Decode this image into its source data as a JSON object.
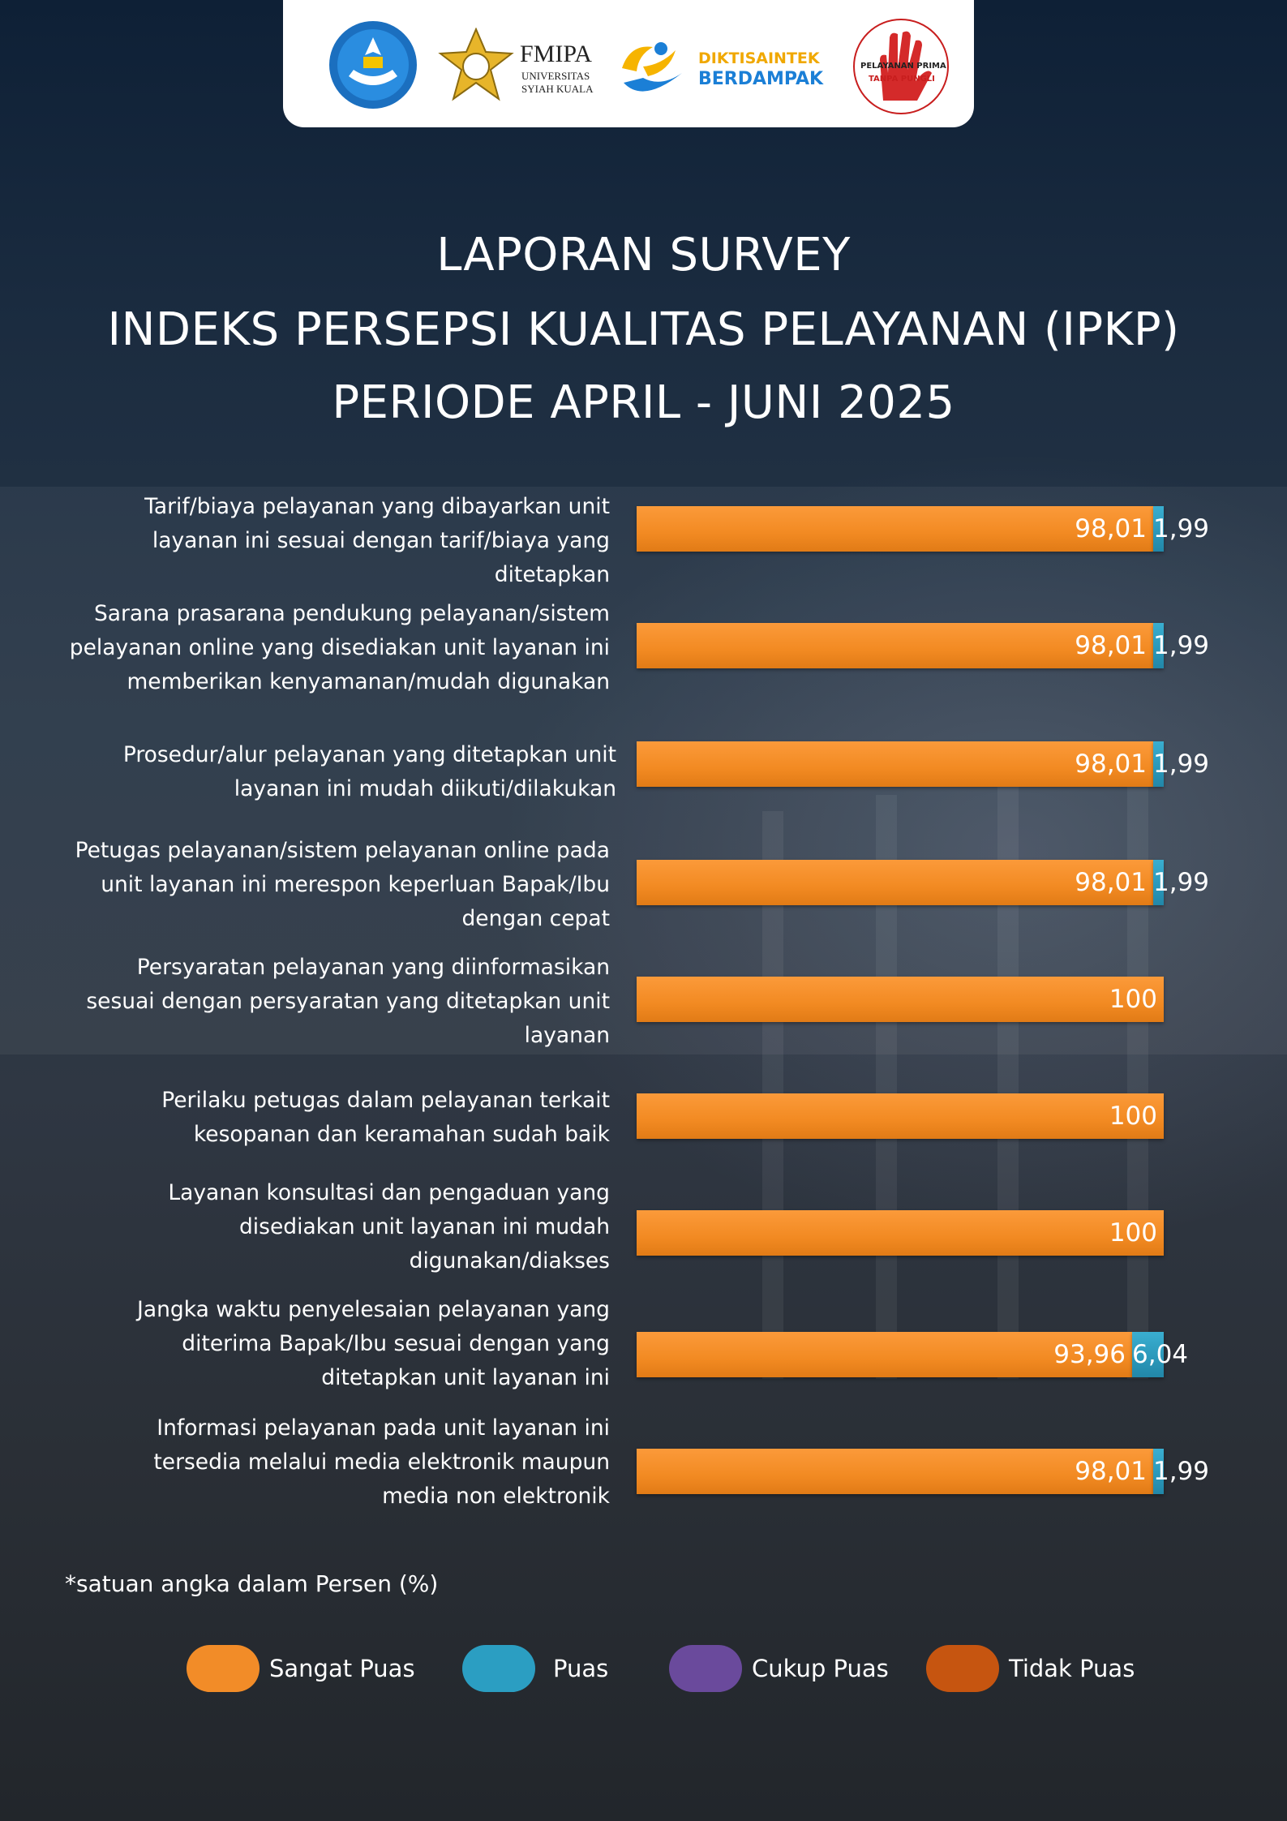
{
  "header": {
    "logos": [
      {
        "name": "tut-wuri-handayani-logo",
        "text": "TUT WURI HANDAYANI"
      },
      {
        "name": "fmipa-usk-logo",
        "text": "FMIPA",
        "sub1": "UNIVERSITAS",
        "sub2": "SYIAH KUALA"
      },
      {
        "name": "diktisaintek-berdampak-logo",
        "text1": "DIKTISAINTEK",
        "text2": "BERDAMPAK"
      },
      {
        "name": "zona-integritas-pelayanan-prima-logo",
        "text1": "PELAYANAN PRIMA",
        "text2": "TANPA PUNGLI"
      }
    ]
  },
  "title": {
    "line1": "LAPORAN SURVEY",
    "line2": "INDEKS PERSEPSI KUALITAS PELAYANAN (IPKP)",
    "line3": "PERIODE APRIL -  JUNI 2025"
  },
  "chart_data": {
    "type": "bar",
    "orientation": "horizontal",
    "stacked": true,
    "categories": [
      "Tarif/biaya pelayanan yang dibayarkan unit layanan ini sesuai dengan tarif/biaya yang ditetapkan",
      "Sarana prasarana pendukung pelayanan/sistem pelayanan online yang disediakan unit layanan ini memberikan kenyamanan/mudah digunakan",
      "Prosedur/alur pelayanan yang ditetapkan unit layanan ini mudah diikuti/dilakukan",
      "Petugas pelayanan/sistem pelayanan online pada unit layanan ini merespon keperluan Bapak/Ibu dengan cepat",
      "Persyaratan pelayanan yang diinformasikan sesuai dengan persyaratan yang ditetapkan unit layanan",
      "Perilaku petugas dalam pelayanan terkait kesopanan dan keramahan sudah baik",
      "Layanan konsultasi dan pengaduan yang disediakan unit layanan ini mudah digunakan/diakses",
      "Jangka waktu penyelesaian pelayanan yang diterima Bapak/Ibu sesuai dengan yang ditetapkan unit layanan ini",
      "Informasi pelayanan pada unit layanan ini tersedia melalui media elektronik maupun media non elektronik"
    ],
    "label_lines": [
      [
        "Tarif/biaya pelayanan yang dibayarkan unit",
        "layanan ini sesuai dengan tarif/biaya yang",
        "ditetapkan"
      ],
      [
        "Sarana prasarana pendukung pelayanan/sistem",
        "pelayanan online yang disediakan unit layanan ini",
        "memberikan kenyamanan/mudah digunakan"
      ],
      [
        "Prosedur/alur pelayanan yang ditetapkan unit",
        "layanan ini mudah diikuti/dilakukan"
      ],
      [
        "Petugas pelayanan/sistem pelayanan online pada",
        "unit layanan ini merespon keperluan Bapak/Ibu",
        "dengan cepat"
      ],
      [
        "Persyaratan pelayanan yang diinformasikan",
        "sesuai dengan persyaratan yang ditetapkan unit",
        "layanan"
      ],
      [
        "Perilaku petugas dalam pelayanan terkait",
        "kesopanan dan keramahan sudah baik"
      ],
      [
        "Layanan konsultasi dan pengaduan yang",
        "disediakan unit layanan ini mudah",
        "digunakan/diakses"
      ],
      [
        "Jangka waktu penyelesaian pelayanan yang",
        "diterima Bapak/Ibu sesuai dengan yang",
        "ditetapkan unit layanan ini"
      ],
      [
        "Informasi pelayanan pada unit layanan ini",
        "tersedia melalui media elektronik maupun",
        "media non elektronik"
      ]
    ],
    "series": [
      {
        "name": "Sangat Puas",
        "color": "#f28c28",
        "values": [
          98.01,
          98.01,
          98.01,
          98.01,
          100,
          100,
          100,
          93.96,
          98.01
        ],
        "labels": [
          "98,01",
          "98,01",
          "98,01",
          "98,01",
          "100",
          "100",
          "100",
          "93,96",
          "98,01"
        ]
      },
      {
        "name": "Puas",
        "color": "#2b9ec2",
        "values": [
          1.99,
          1.99,
          1.99,
          1.99,
          0,
          0,
          0,
          6.04,
          1.99
        ],
        "labels": [
          "1,99",
          "1,99",
          "1,99",
          "1,99",
          "",
          "",
          "",
          "6,04",
          "1,99"
        ]
      },
      {
        "name": "Cukup Puas",
        "color": "#6a4a9c",
        "values": [
          0,
          0,
          0,
          0,
          0,
          0,
          0,
          0,
          0
        ]
      },
      {
        "name": "Tidak Puas",
        "color": "#c65510",
        "values": [
          0,
          0,
          0,
          0,
          0,
          0,
          0,
          0,
          0
        ]
      }
    ],
    "xlim": [
      0,
      100
    ],
    "legend_position": "bottom",
    "grid": false
  },
  "note": "*satuan angka dalam Persen (%)",
  "legend": [
    {
      "label": "Sangat Puas",
      "color": "#f28c28"
    },
    {
      "label": "Puas",
      "color": "#2b9ec2"
    },
    {
      "label": "Cukup Puas",
      "color": "#6a4a9c"
    },
    {
      "label": "Tidak Puas",
      "color": "#c65510"
    }
  ]
}
